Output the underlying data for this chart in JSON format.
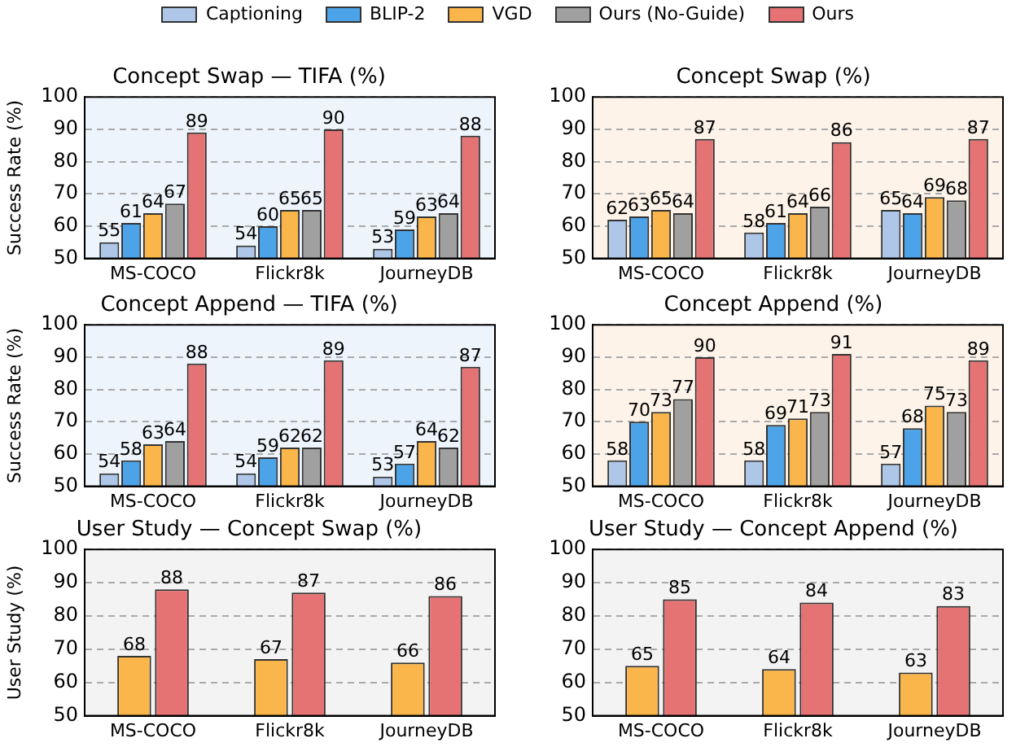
{
  "chart_data": [
    {
      "type": "bar",
      "title": "Concept Swap — TIFA (%)",
      "ylabel": "Success Rate (%)",
      "categories": [
        "MS-COCO",
        "Flickr8k",
        "JourneyDB"
      ],
      "ylim": [
        50,
        100
      ],
      "yticks": [
        50,
        60,
        70,
        80,
        90,
        100
      ],
      "grid": "y",
      "data_labels": true,
      "legend": "top",
      "series": [
        {
          "name": "Captioning",
          "color": "#aec7e8",
          "values": [
            55,
            54,
            53
          ]
        },
        {
          "name": "BLIP-2",
          "color": "#4da3e8",
          "values": [
            61,
            60,
            59
          ]
        },
        {
          "name": "VGD",
          "color": "#fbb64b",
          "values": [
            64,
            65,
            63
          ]
        },
        {
          "name": "Ours (No-Guide)",
          "color": "#a0a0a0",
          "values": [
            67,
            65,
            64
          ]
        },
        {
          "name": "Ours",
          "color": "#e57373",
          "values": [
            89,
            90,
            88
          ]
        }
      ]
    },
    {
      "type": "bar",
      "title": "Concept Swap (%)",
      "categories": [
        "MS-COCO",
        "Flickr8k",
        "JourneyDB"
      ],
      "ylim": [
        50,
        100
      ],
      "yticks": [
        50,
        60,
        70,
        80,
        90,
        100
      ],
      "grid": "y",
      "data_labels": true,
      "series": [
        {
          "color": "#aec7e8",
          "values": [
            62,
            58,
            65
          ]
        },
        {
          "color": "#4da3e8",
          "values": [
            63,
            61,
            64
          ]
        },
        {
          "color": "#fbb64b",
          "values": [
            65,
            64,
            69
          ]
        },
        {
          "color": "#a0a0a0",
          "values": [
            64,
            66,
            68
          ]
        },
        {
          "color": "#e57373",
          "values": [
            87,
            86,
            87
          ]
        }
      ]
    },
    {
      "type": "bar",
      "title": "Concept Append — TIFA (%)",
      "ylabel": "Success Rate (%)",
      "categories": [
        "MS-COCO",
        "Flickr8k",
        "JourneyDB"
      ],
      "ylim": [
        50,
        100
      ],
      "yticks": [
        50,
        60,
        70,
        80,
        90,
        100
      ],
      "grid": "y",
      "data_labels": true,
      "series": [
        {
          "color": "#aec7e8",
          "values": [
            54,
            54,
            53
          ]
        },
        {
          "color": "#4da3e8",
          "values": [
            58,
            59,
            57
          ]
        },
        {
          "color": "#fbb64b",
          "values": [
            63,
            62,
            64
          ]
        },
        {
          "color": "#a0a0a0",
          "values": [
            64,
            62,
            62
          ]
        },
        {
          "color": "#e57373",
          "values": [
            88,
            89,
            87
          ]
        }
      ]
    },
    {
      "type": "bar",
      "title": "Concept Append (%)",
      "categories": [
        "MS-COCO",
        "Flickr8k",
        "JourneyDB"
      ],
      "ylim": [
        50,
        100
      ],
      "yticks": [
        50,
        60,
        70,
        80,
        90,
        100
      ],
      "grid": "y",
      "data_labels": true,
      "series": [
        {
          "color": "#aec7e8",
          "values": [
            58,
            58,
            57
          ]
        },
        {
          "color": "#4da3e8",
          "values": [
            70,
            69,
            68
          ]
        },
        {
          "color": "#fbb64b",
          "values": [
            73,
            71,
            75
          ]
        },
        {
          "color": "#a0a0a0",
          "values": [
            77,
            73,
            73
          ]
        },
        {
          "color": "#e57373",
          "values": [
            90,
            91,
            89
          ]
        }
      ]
    },
    {
      "type": "bar",
      "title": "User Study — Concept Swap (%)",
      "ylabel": "User Study (%)",
      "categories": [
        "MS-COCO",
        "Flickr8k",
        "JourneyDB"
      ],
      "ylim": [
        50,
        100
      ],
      "yticks": [
        50,
        60,
        70,
        80,
        90,
        100
      ],
      "grid": "y",
      "data_labels": true,
      "series": [
        {
          "color": "#fbb64b",
          "values": [
            68,
            67,
            66
          ]
        },
        {
          "color": "#e57373",
          "values": [
            88,
            87,
            86
          ]
        }
      ]
    },
    {
      "type": "bar",
      "title": "User Study — Concept Append (%)",
      "categories": [
        "MS-COCO",
        "Flickr8k",
        "JourneyDB"
      ],
      "ylim": [
        50,
        100
      ],
      "yticks": [
        50,
        60,
        70,
        80,
        90,
        100
      ],
      "grid": "y",
      "data_labels": true,
      "series": [
        {
          "color": "#fbb64b",
          "values": [
            65,
            64,
            63
          ]
        },
        {
          "color": "#e57373",
          "values": [
            85,
            84,
            83
          ]
        }
      ]
    }
  ]
}
